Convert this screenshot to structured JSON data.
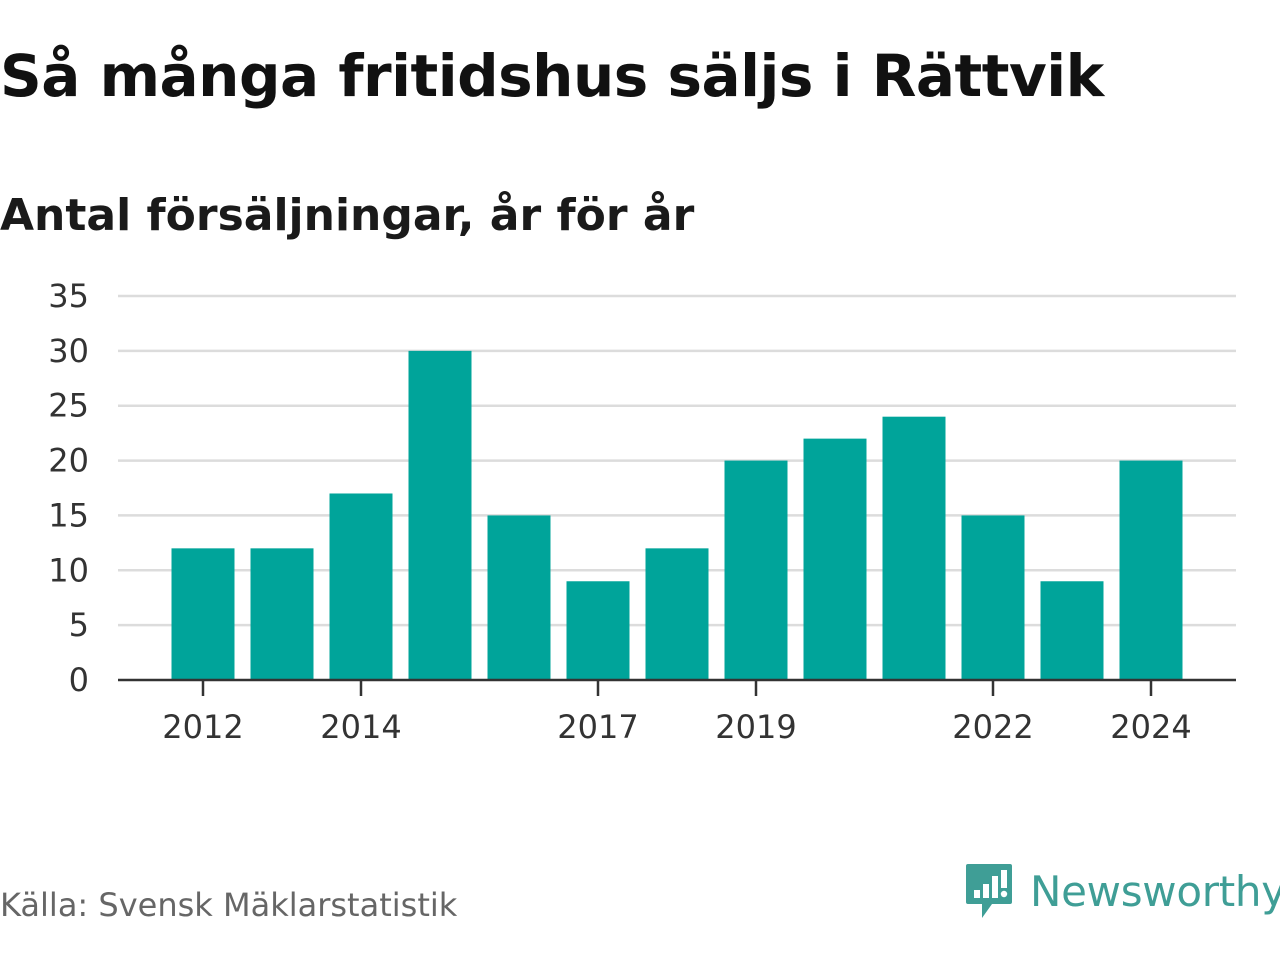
{
  "title": "Så många fritidshus säljs i Rättvik",
  "subtitle": "Antal försäljningar, år för år",
  "source": "Källa: Svensk Mäklarstatistik",
  "brand": {
    "name": "Newsworthy",
    "icon": "chart-speech-bubble-icon",
    "color": "#3f9e96"
  },
  "chart_data": {
    "type": "bar",
    "categories": [
      "2012",
      "2013",
      "2014",
      "2015",
      "2016",
      "2017",
      "2018",
      "2019",
      "2020",
      "2021",
      "2022",
      "2023",
      "2024"
    ],
    "values": [
      12,
      12,
      17,
      30,
      15,
      9,
      12,
      20,
      22,
      24,
      15,
      9,
      20
    ],
    "x_tick_labels": [
      "2012",
      "2014",
      "2017",
      "2019",
      "2022",
      "2024"
    ],
    "y_ticks": [
      0,
      5,
      10,
      15,
      20,
      25,
      30,
      35
    ],
    "ylim": [
      0,
      35
    ],
    "grid": true,
    "bar_color": "#00a49a"
  }
}
